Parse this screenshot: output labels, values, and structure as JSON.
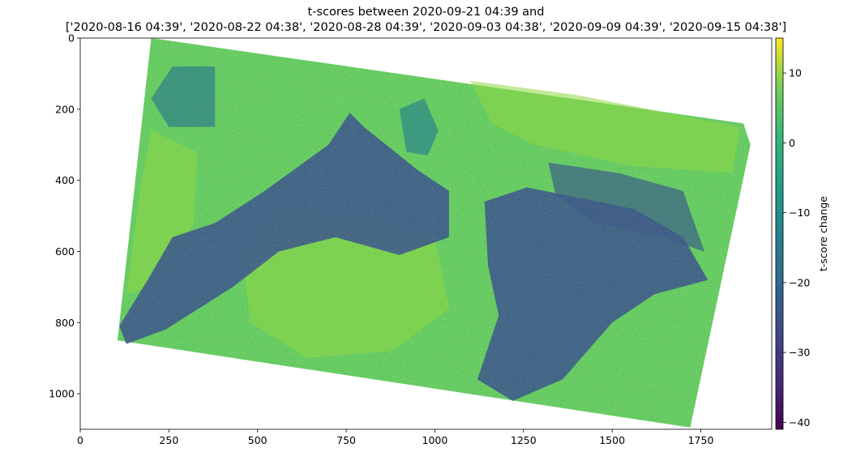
{
  "chart_data": {
    "type": "heatmap",
    "title_line1": "t-scores between 2020-09-21 04:39 and",
    "title_line2": "['2020-08-16 04:39', '2020-08-22 04:38', '2020-08-28 04:39', '2020-09-03 04:38', '2020-09-09 04:39', '2020-09-15 04:38']",
    "xlabel": "",
    "ylabel": "",
    "xlim": [
      0,
      1950
    ],
    "ylim": [
      1100,
      0
    ],
    "x_ticks": [
      0,
      250,
      500,
      750,
      1000,
      1250,
      1500,
      1750
    ],
    "y_ticks": [
      0,
      200,
      400,
      600,
      800,
      1000
    ],
    "colorbar": {
      "label": "t-score change",
      "range": [
        -41,
        15
      ],
      "ticks": [
        10,
        0,
        -10,
        -20,
        -30,
        -40
      ],
      "colormap": "viridis"
    },
    "data_footprint": [
      [
        200,
        0
      ],
      [
        1870,
        240
      ],
      [
        1890,
        300
      ],
      [
        1720,
        1095
      ],
      [
        105,
        850
      ]
    ],
    "low_value_regions": [
      {
        "note": "",
        "polygon": [
          [
            110,
            810
          ],
          [
            190,
            680
          ],
          [
            260,
            560
          ],
          [
            380,
            520
          ],
          [
            520,
            430
          ],
          [
            700,
            300
          ],
          [
            760,
            210
          ],
          [
            800,
            250
          ],
          [
            950,
            370
          ],
          [
            1040,
            430
          ],
          [
            1040,
            560
          ],
          [
            900,
            610
          ],
          [
            720,
            560
          ],
          [
            560,
            600
          ],
          [
            430,
            700
          ],
          [
            240,
            820
          ],
          [
            130,
            860
          ]
        ]
      },
      {
        "note": "",
        "polygon": [
          [
            1140,
            460
          ],
          [
            1260,
            420
          ],
          [
            1560,
            480
          ],
          [
            1700,
            560
          ],
          [
            1770,
            680
          ],
          [
            1620,
            720
          ],
          [
            1500,
            800
          ],
          [
            1360,
            960
          ],
          [
            1220,
            1020
          ],
          [
            1120,
            960
          ],
          [
            1180,
            780
          ],
          [
            1150,
            640
          ]
        ]
      },
      {
        "note": "",
        "polygon": [
          [
            900,
            200
          ],
          [
            970,
            170
          ],
          [
            1010,
            260
          ],
          [
            980,
            330
          ],
          [
            920,
            320
          ]
        ]
      },
      {
        "note": "",
        "polygon": [
          [
            260,
            80
          ],
          [
            380,
            80
          ],
          [
            380,
            250
          ],
          [
            250,
            250
          ],
          [
            200,
            170
          ]
        ]
      },
      {
        "note": "",
        "polygon": [
          [
            1320,
            350
          ],
          [
            1520,
            380
          ],
          [
            1700,
            430
          ],
          [
            1760,
            600
          ],
          [
            1640,
            560
          ],
          [
            1450,
            520
          ],
          [
            1340,
            440
          ]
        ]
      }
    ],
    "high_value_regions": [
      {
        "note": "",
        "polygon": [
          [
            200,
            260
          ],
          [
            330,
            320
          ],
          [
            320,
            520
          ],
          [
            210,
            700
          ],
          [
            130,
            720
          ],
          [
            170,
            420
          ]
        ]
      },
      {
        "note": "",
        "polygon": [
          [
            560,
            480
          ],
          [
            840,
            520
          ],
          [
            1000,
            560
          ],
          [
            1040,
            760
          ],
          [
            880,
            880
          ],
          [
            640,
            900
          ],
          [
            480,
            800
          ],
          [
            460,
            650
          ]
        ]
      },
      {
        "note": "",
        "polygon": [
          [
            1100,
            120
          ],
          [
            1400,
            160
          ],
          [
            1860,
            250
          ],
          [
            1840,
            380
          ],
          [
            1560,
            360
          ],
          [
            1280,
            300
          ],
          [
            1160,
            240
          ]
        ]
      }
    ],
    "colors": {
      "viridis_low": "#440154",
      "viridis_mid": "#21918c",
      "viridis_high": "#fde725"
    }
  }
}
